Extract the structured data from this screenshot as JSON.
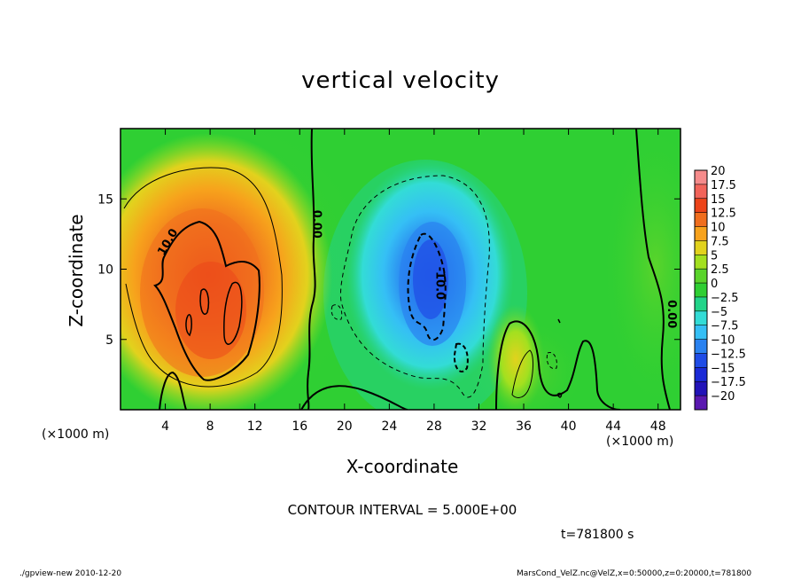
{
  "chart_data": {
    "type": "heatmap",
    "title": "vertical velocity",
    "xlabel": "X-coordinate",
    "ylabel": "Z-coordinate",
    "x_unit_label": "(×1000 m)",
    "y_unit_label": "(×1000 m)",
    "xlim": [
      0,
      50
    ],
    "ylim": [
      0,
      20
    ],
    "x_ticks": [
      4,
      8,
      12,
      16,
      20,
      24,
      28,
      32,
      36,
      40,
      44,
      48
    ],
    "y_ticks": [
      5,
      10,
      15
    ],
    "colorbar": {
      "levels": [
        "20",
        "17.5",
        "15",
        "12.5",
        "10",
        "7.5",
        "5",
        "2.5",
        "0",
        "−2.5",
        "−5",
        "−7.5",
        "−10",
        "−12.5",
        "−15",
        "−17.5",
        "−20"
      ],
      "colors": [
        "#f58b8b",
        "#f2645a",
        "#ec4419",
        "#f06e1e",
        "#f7a21c",
        "#e2d21d",
        "#a3e01f",
        "#5ad42b",
        "#2fcf33",
        "#22d489",
        "#33dcd6",
        "#35bff5",
        "#2a82f0",
        "#1f4ce6",
        "#1a2ad6",
        "#2213b8",
        "#5a18b0"
      ]
    },
    "features": [
      {
        "kind": "updraft",
        "center": [
          8,
          8
        ],
        "peak": 14
      },
      {
        "kind": "updraft",
        "center": [
          36,
          3
        ],
        "peak": 5
      },
      {
        "kind": "downdraft",
        "center": [
          27.5,
          8
        ],
        "peak": -13
      }
    ],
    "contour_labels": [
      {
        "text": "10.0",
        "x": 4.5,
        "y": 11.8
      },
      {
        "text": "0.00",
        "x": 17.2,
        "y": 13.2
      },
      {
        "text": "-10.0",
        "x": 28.2,
        "y": 9.0
      },
      {
        "text": "0.00",
        "x": 48.9,
        "y": 6.8
      }
    ],
    "contour_interval_text": "CONTOUR INTERVAL = 5.000E+00",
    "time_text": "t=781800  s"
  },
  "footer": {
    "left": "./gpview-new   2010-12-20",
    "right": "MarsCond_VelZ.nc@VelZ,x=0:50000,z=0:20000,t=781800"
  }
}
